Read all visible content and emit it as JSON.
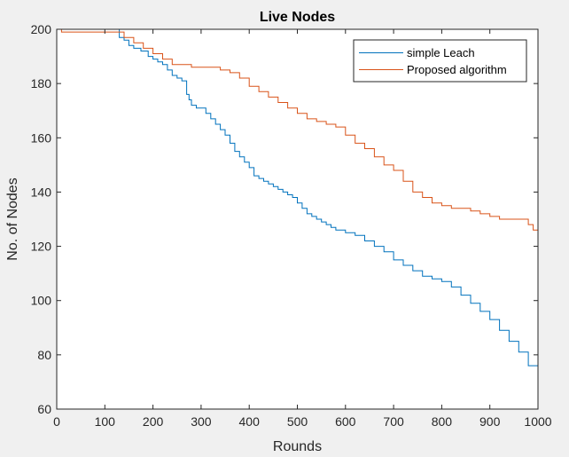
{
  "chart_data": {
    "type": "line",
    "title": "Live Nodes",
    "xlabel": "Rounds",
    "ylabel": "No. of Nodes",
    "xlim": [
      0,
      1000
    ],
    "ylim": [
      60,
      200
    ],
    "xticks": [
      0,
      100,
      200,
      300,
      400,
      500,
      600,
      700,
      800,
      900,
      1000
    ],
    "yticks": [
      60,
      80,
      100,
      120,
      140,
      160,
      180,
      200
    ],
    "grid": false,
    "legend_position": "top-right",
    "series": [
      {
        "name": "simple Leach",
        "color": "#0072bd",
        "x": [
          0,
          125,
          130,
          140,
          150,
          160,
          175,
          190,
          200,
          210,
          220,
          230,
          240,
          250,
          260,
          270,
          275,
          280,
          290,
          300,
          310,
          320,
          330,
          340,
          350,
          360,
          370,
          380,
          390,
          400,
          410,
          420,
          430,
          440,
          450,
          460,
          470,
          480,
          490,
          500,
          510,
          520,
          530,
          540,
          550,
          560,
          570,
          580,
          600,
          620,
          640,
          660,
          680,
          700,
          720,
          740,
          760,
          780,
          800,
          820,
          840,
          860,
          880,
          900,
          920,
          940,
          960,
          980,
          1000
        ],
        "y": [
          200,
          200,
          197,
          196,
          194,
          193,
          192,
          190,
          189,
          188,
          187,
          185,
          183,
          182,
          181,
          176,
          174,
          172,
          171,
          171,
          169,
          167,
          165,
          163,
          161,
          158,
          155,
          153,
          151,
          149,
          146,
          145,
          144,
          143,
          142,
          141,
          140,
          139,
          138,
          136,
          134,
          132,
          131,
          130,
          129,
          128,
          127,
          126,
          125,
          124,
          122,
          120,
          118,
          115,
          113,
          111,
          109,
          108,
          107,
          105,
          102,
          99,
          96,
          93,
          89,
          85,
          81,
          76,
          72
        ]
      },
      {
        "name": "Proposed algorithm",
        "color": "#d95319",
        "x": [
          0,
          10,
          125,
          140,
          160,
          180,
          200,
          220,
          240,
          260,
          280,
          300,
          320,
          340,
          360,
          380,
          400,
          420,
          440,
          460,
          480,
          500,
          520,
          540,
          560,
          580,
          600,
          620,
          640,
          660,
          680,
          700,
          720,
          740,
          760,
          780,
          800,
          820,
          840,
          860,
          880,
          900,
          920,
          940,
          960,
          980,
          990,
          1000
        ],
        "y": [
          200,
          199,
          199,
          197,
          195,
          193,
          191,
          189,
          187,
          187,
          186,
          186,
          186,
          185,
          184,
          182,
          179,
          177,
          175,
          173,
          171,
          169,
          167,
          166,
          165,
          164,
          161,
          158,
          156,
          153,
          150,
          148,
          144,
          140,
          138,
          136,
          135,
          134,
          134,
          133,
          132,
          131,
          130,
          130,
          130,
          128,
          126,
          126
        ]
      }
    ]
  }
}
